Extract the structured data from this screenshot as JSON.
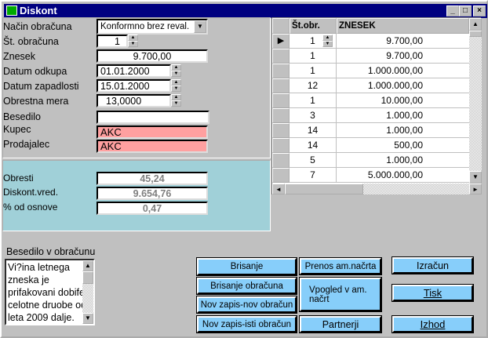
{
  "window": {
    "title": "Diskont",
    "minimize": "_",
    "maximize": "□",
    "close": "×"
  },
  "form": {
    "nacin_label": "Način obračuna",
    "nacin_value": "Konformno brez reval.",
    "st_label": "Št. obračuna",
    "st_value": "1",
    "znesek_label": "Znesek",
    "znesek_value": "9.700,00",
    "odkup_label": "Datum odkupa",
    "odkup_value": "01.01.2000",
    "zapad_label": "Datum zapadlosti",
    "zapad_value": "15.01.2000",
    "mera_label": "Obrestna mera",
    "mera_value": "13,0000",
    "besedilo_label": "Besedilo",
    "besedilo_value": "",
    "kupec_label": "Kupec",
    "kupec_value": "AKC",
    "prodajalec_label": "Prodajalec",
    "prodajalec_value": "AKC"
  },
  "results": {
    "obresti_label": "Obresti",
    "obresti_value": "45,24",
    "diskont_label": "Diskont.vred.",
    "diskont_value": "9.654,76",
    "pct_label": "% od osnove",
    "pct_value": "0,47"
  },
  "grid": {
    "headers": [
      "Št.obr.",
      "ZNESEK"
    ],
    "rows": [
      {
        "st": "1",
        "znesek": "9.700,00",
        "current": true
      },
      {
        "st": "1",
        "znesek": "9.700,00"
      },
      {
        "st": "1",
        "znesek": "1.000.000,00"
      },
      {
        "st": "12",
        "znesek": "1.000.000,00"
      },
      {
        "st": "1",
        "znesek": "10.000,00"
      },
      {
        "st": "3",
        "znesek": "1.000,00"
      },
      {
        "st": "14",
        "znesek": "1.000,00"
      },
      {
        "st": "14",
        "znesek": "500,00"
      },
      {
        "st": "5",
        "znesek": "1.000,00"
      },
      {
        "st": "7",
        "znesek": "5.000.000,00"
      }
    ]
  },
  "note": {
    "label": "Besedilo v obračunu",
    "lines": [
      "Vi?ina letnega",
      "zneska je",
      "prifakovani dobifek",
      "celotne druobe od",
      "leta 2009 dalje."
    ]
  },
  "buttons": {
    "brisanje": "Brisanje",
    "brisanje_obr": "Brisanje obračuna",
    "nov_nov": "Nov zapis-nov obračun",
    "nov_isti": "Nov zapis-isti obračun",
    "prenos": "Prenos am.načrta",
    "vpogled": "Vpogled v am. načrt",
    "partnerji": "Partnerji",
    "izracun": "Izračun",
    "tisk": "Tisk",
    "izhod": "Izhod"
  },
  "colors": {
    "title": "#000080",
    "button": "#87cefa",
    "results_panel": "#a0d0d8",
    "pink_field": "#ffa0a0"
  }
}
